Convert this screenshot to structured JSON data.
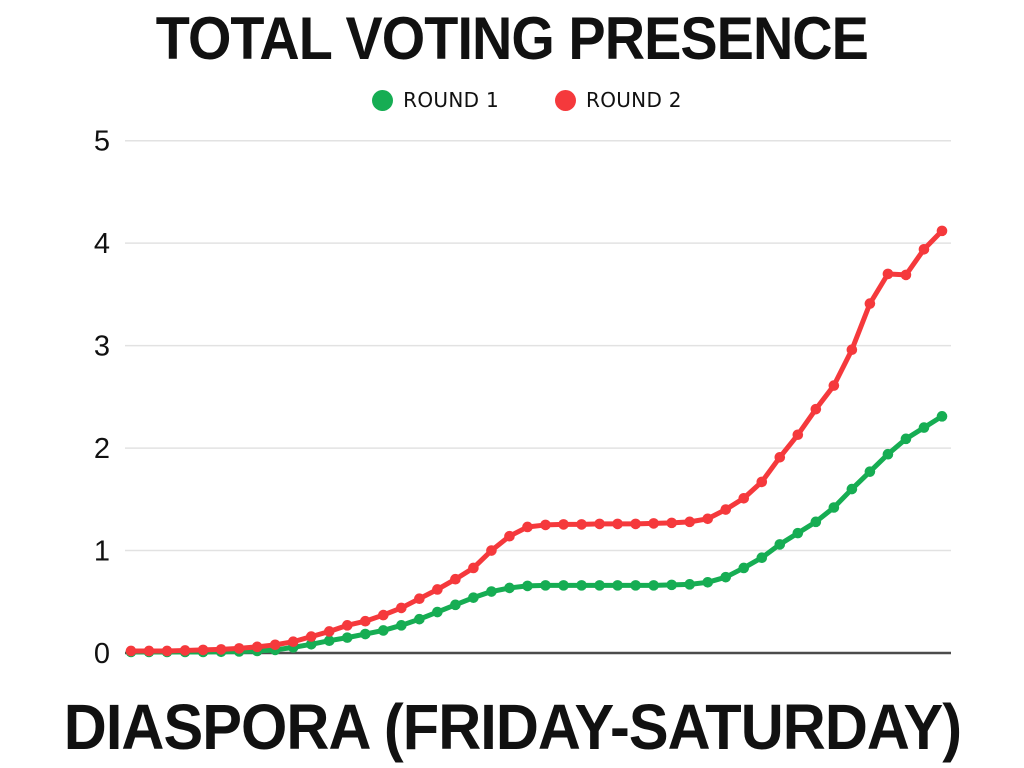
{
  "chart_data": {
    "type": "line",
    "title": "TOTAL VOTING PRESENCE",
    "xlabel": "DIASPORA (FRIDAY-SATURDAY)",
    "ylabel": "",
    "ylim": [
      0,
      5
    ],
    "yticks": [
      0,
      1,
      2,
      3,
      4,
      5
    ],
    "grid": true,
    "legend_position": "top",
    "marker": "circle",
    "x": [
      1,
      2,
      3,
      4,
      5,
      6,
      7,
      8,
      9,
      10,
      11,
      12,
      13,
      14,
      15,
      16,
      17,
      18,
      19,
      20,
      21,
      22,
      23,
      24,
      25,
      26,
      27,
      28,
      29,
      30,
      31,
      32,
      33,
      34,
      35,
      36,
      37,
      38,
      39,
      40,
      41,
      42,
      43,
      44,
      45,
      46
    ],
    "series": [
      {
        "name": "ROUND 1",
        "color": "#16ad53",
        "values": [
          0.01,
          0.01,
          0.01,
          0.01,
          0.01,
          0.012,
          0.015,
          0.02,
          0.03,
          0.055,
          0.085,
          0.12,
          0.15,
          0.185,
          0.22,
          0.27,
          0.33,
          0.4,
          0.47,
          0.54,
          0.6,
          0.635,
          0.655,
          0.66,
          0.66,
          0.66,
          0.66,
          0.66,
          0.66,
          0.66,
          0.665,
          0.67,
          0.69,
          0.74,
          0.83,
          0.93,
          1.06,
          1.17,
          1.28,
          1.42,
          1.6,
          1.77,
          1.94,
          2.09,
          2.2,
          2.31
        ]
      },
      {
        "name": "ROUND 2",
        "color": "#f5393c",
        "values": [
          0.02,
          0.02,
          0.02,
          0.025,
          0.03,
          0.035,
          0.045,
          0.06,
          0.08,
          0.11,
          0.16,
          0.21,
          0.27,
          0.31,
          0.37,
          0.44,
          0.53,
          0.62,
          0.72,
          0.83,
          1.0,
          1.14,
          1.23,
          1.25,
          1.255,
          1.255,
          1.26,
          1.26,
          1.26,
          1.265,
          1.27,
          1.28,
          1.31,
          1.4,
          1.51,
          1.67,
          1.91,
          2.13,
          2.38,
          2.61,
          2.96,
          3.41,
          3.7,
          3.69,
          3.94,
          4.12
        ]
      }
    ],
    "axis_color": "#4c4c4c",
    "gridline_color": "#e2e2e2",
    "text_color": "#111111"
  }
}
